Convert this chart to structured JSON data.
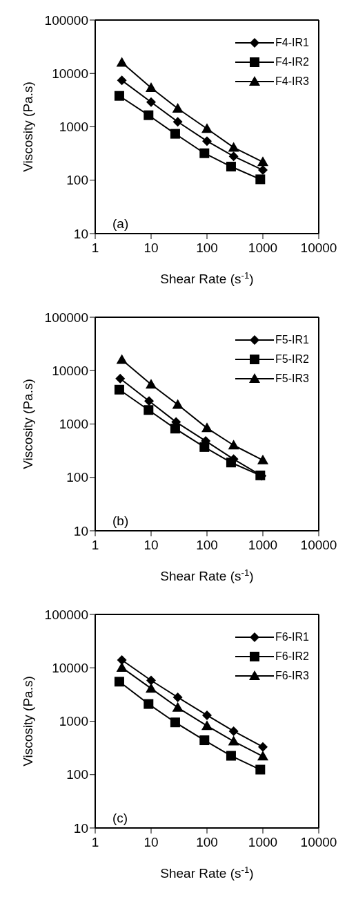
{
  "chart_data": [
    {
      "type": "line",
      "xlabel": "Shear Rate (s$^{-1}$)",
      "ylabel": "Viscosity (Pa.s)",
      "annotations": [
        "(a)"
      ],
      "log": "xy",
      "xlim": [
        1,
        10000
      ],
      "xticks": [
        1,
        10,
        100,
        1000,
        10000
      ],
      "ylim": [
        10,
        100000
      ],
      "yticks": [
        10,
        100,
        1000,
        10000,
        100000
      ],
      "legend": "top right",
      "line_style": "solid",
      "series": [
        {
          "name": "F4-IR1",
          "color": "#000000",
          "marker": "diamond",
          "x": [
            3,
            10,
            30,
            100,
            300,
            1000
          ],
          "values": [
            7400,
            2900,
            1240,
            540,
            280,
            155
          ]
        },
        {
          "name": "F4-IR2",
          "color": "#000000",
          "marker": "square",
          "x": [
            2.7,
            9,
            27,
            90,
            270,
            900
          ],
          "values": [
            3800,
            1650,
            740,
            320,
            180,
            104
          ]
        },
        {
          "name": "F4-IR3",
          "color": "#000000",
          "marker": "triangle",
          "x": [
            3,
            10,
            30,
            100,
            300,
            1000
          ],
          "values": [
            16000,
            5400,
            2200,
            920,
            410,
            220
          ]
        }
      ]
    },
    {
      "type": "line",
      "xlabel": "Shear Rate (s$^{-1}$)",
      "ylabel": "Viscosity (Pa.s)",
      "annotations": [
        "(b)"
      ],
      "log": "xy",
      "xlim": [
        1,
        10000
      ],
      "xticks": [
        1,
        10,
        100,
        1000,
        10000
      ],
      "ylim": [
        10,
        100000
      ],
      "yticks": [
        10,
        100,
        1000,
        10000,
        100000
      ],
      "legend": "top right",
      "line_style": "solid",
      "series": [
        {
          "name": "F5-IR1",
          "color": "#000000",
          "marker": "diamond",
          "x": [
            2.8,
            9.2,
            28,
            95,
            300,
            950
          ],
          "values": [
            7100,
            2700,
            1090,
            480,
            220,
            107
          ]
        },
        {
          "name": "F5-IR2",
          "color": "#000000",
          "marker": "square",
          "x": [
            2.7,
            9,
            27,
            90,
            270,
            900
          ],
          "values": [
            4400,
            1830,
            820,
            370,
            190,
            109
          ]
        },
        {
          "name": "F5-IR3",
          "color": "#000000",
          "marker": "triangle",
          "x": [
            3,
            10,
            30,
            100,
            300,
            1000
          ],
          "values": [
            16000,
            5500,
            2300,
            840,
            400,
            210
          ]
        }
      ]
    },
    {
      "type": "line",
      "xlabel": "Shear Rate (s$^{-1}$)",
      "ylabel": "Viscosity (Pa.s)",
      "annotations": [
        "(c)"
      ],
      "log": "xy",
      "xlim": [
        1,
        10000
      ],
      "xticks": [
        1,
        10,
        100,
        1000,
        10000
      ],
      "ylim": [
        10,
        100000
      ],
      "yticks": [
        10,
        100,
        1000,
        10000,
        100000
      ],
      "legend": "top right",
      "line_style": "solid",
      "series": [
        {
          "name": "F6-IR1",
          "color": "#000000",
          "marker": "diamond",
          "x": [
            3,
            10,
            30,
            100,
            300,
            1000
          ],
          "values": [
            14000,
            5800,
            2800,
            1290,
            650,
            330
          ]
        },
        {
          "name": "F6-IR2",
          "color": "#000000",
          "marker": "square",
          "x": [
            2.7,
            9,
            27,
            90,
            270,
            900
          ],
          "values": [
            5500,
            2100,
            950,
            440,
            225,
            124
          ]
        },
        {
          "name": "F6-IR3",
          "color": "#000000",
          "marker": "triangle",
          "x": [
            3,
            10,
            30,
            100,
            300,
            1000
          ],
          "values": [
            10100,
            4100,
            1800,
            820,
            420,
            220
          ]
        }
      ]
    }
  ]
}
